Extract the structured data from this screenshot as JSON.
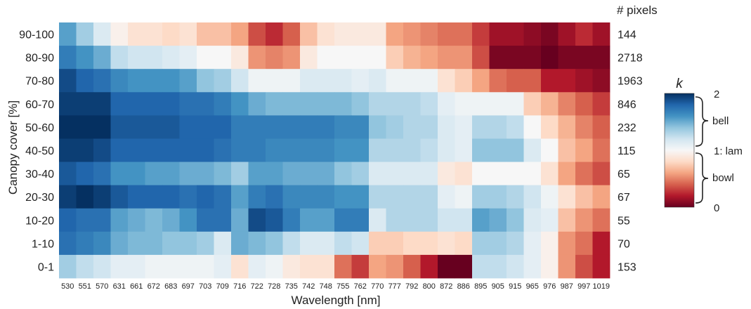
{
  "chart_data": {
    "type": "heatmap",
    "xlabel": "Wavelength [nm]",
    "ylabel": "Canopy cover [%]",
    "pixels_title": "# pixels",
    "x": [
      "530",
      "551",
      "570",
      "631",
      "661",
      "672",
      "683",
      "697",
      "703",
      "709",
      "716",
      "722",
      "728",
      "735",
      "742",
      "748",
      "755",
      "762",
      "770",
      "777",
      "792",
      "800",
      "872",
      "886",
      "895",
      "905",
      "915",
      "965",
      "976",
      "987",
      "997",
      "1019"
    ],
    "y": [
      "90-100",
      "80-90",
      "70-80",
      "60-70",
      "50-60",
      "40-50",
      "30-40",
      "20-30",
      "10-20",
      "1-10",
      "0-1"
    ],
    "pixels": [
      "144",
      "2718",
      "1963",
      "846",
      "232",
      "115",
      "65",
      "67",
      "55",
      "70",
      "153"
    ],
    "z": [
      [
        1.55,
        1.35,
        1.15,
        0.95,
        0.85,
        0.85,
        0.8,
        0.85,
        0.7,
        0.7,
        0.6,
        0.35,
        0.25,
        0.4,
        0.7,
        0.85,
        0.9,
        0.9,
        0.9,
        0.6,
        0.55,
        0.5,
        0.45,
        0.45,
        0.3,
        0.15,
        0.15,
        0.1,
        0.05,
        0.15,
        0.25,
        0.15
      ],
      [
        1.7,
        1.6,
        1.5,
        1.25,
        1.2,
        1.2,
        1.15,
        1.1,
        1.0,
        1.0,
        0.9,
        0.55,
        0.5,
        0.55,
        0.9,
        1.0,
        1.0,
        1.0,
        1.0,
        0.75,
        0.65,
        0.6,
        0.55,
        0.55,
        0.35,
        0.05,
        0.05,
        0.05,
        0.0,
        0.05,
        0.05,
        0.05
      ],
      [
        1.9,
        1.8,
        1.75,
        1.65,
        1.6,
        1.6,
        1.6,
        1.55,
        1.4,
        1.35,
        1.2,
        1.05,
        1.05,
        1.05,
        1.15,
        1.15,
        1.15,
        1.1,
        1.15,
        1.05,
        1.05,
        1.05,
        0.85,
        0.75,
        0.6,
        0.45,
        0.4,
        0.4,
        0.2,
        0.2,
        0.15,
        0.1
      ],
      [
        1.95,
        1.95,
        1.95,
        1.8,
        1.8,
        1.8,
        1.8,
        1.75,
        1.75,
        1.7,
        1.6,
        1.5,
        1.45,
        1.45,
        1.45,
        1.45,
        1.45,
        1.4,
        1.3,
        1.3,
        1.3,
        1.25,
        1.1,
        1.05,
        1.05,
        1.05,
        1.05,
        0.75,
        0.65,
        0.5,
        0.4,
        0.3
      ],
      [
        2.0,
        2.0,
        2.0,
        1.85,
        1.85,
        1.85,
        1.85,
        1.8,
        1.8,
        1.8,
        1.7,
        1.7,
        1.7,
        1.7,
        1.7,
        1.7,
        1.65,
        1.65,
        1.4,
        1.35,
        1.3,
        1.3,
        1.15,
        1.1,
        1.3,
        1.3,
        1.25,
        1.0,
        0.8,
        0.65,
        0.5,
        0.4
      ],
      [
        1.95,
        1.95,
        1.9,
        1.8,
        1.8,
        1.8,
        1.8,
        1.8,
        1.8,
        1.75,
        1.7,
        1.7,
        1.65,
        1.65,
        1.65,
        1.65,
        1.6,
        1.6,
        1.3,
        1.3,
        1.3,
        1.25,
        1.15,
        1.1,
        1.4,
        1.4,
        1.4,
        1.15,
        1.0,
        0.7,
        0.6,
        0.45
      ],
      [
        1.85,
        1.8,
        1.75,
        1.6,
        1.6,
        1.55,
        1.55,
        1.5,
        1.5,
        1.45,
        1.35,
        1.55,
        1.55,
        1.5,
        1.5,
        1.5,
        1.4,
        1.35,
        1.15,
        1.15,
        1.15,
        1.15,
        0.9,
        0.85,
        1.0,
        1.0,
        1.0,
        1.0,
        0.85,
        0.6,
        0.45,
        0.35
      ],
      [
        1.95,
        2.0,
        1.95,
        1.85,
        1.8,
        1.8,
        1.8,
        1.75,
        1.8,
        1.75,
        1.55,
        1.7,
        1.75,
        1.65,
        1.65,
        1.65,
        1.6,
        1.6,
        1.3,
        1.3,
        1.3,
        1.3,
        1.1,
        1.05,
        1.35,
        1.35,
        1.3,
        1.2,
        1.05,
        0.85,
        0.7,
        0.6
      ],
      [
        1.8,
        1.75,
        1.75,
        1.55,
        1.5,
        1.45,
        1.5,
        1.6,
        1.75,
        1.75,
        1.5,
        1.9,
        1.85,
        1.7,
        1.55,
        1.55,
        1.7,
        1.7,
        1.15,
        1.3,
        1.3,
        1.3,
        1.2,
        1.2,
        1.55,
        1.5,
        1.4,
        1.15,
        1.1,
        0.7,
        0.55,
        0.45
      ],
      [
        1.75,
        1.7,
        1.65,
        1.5,
        1.45,
        1.45,
        1.4,
        1.4,
        1.35,
        1.15,
        1.5,
        1.45,
        1.4,
        1.25,
        1.15,
        1.15,
        1.25,
        1.2,
        0.75,
        0.75,
        0.8,
        0.8,
        0.85,
        0.8,
        1.35,
        1.35,
        1.3,
        1.1,
        0.95,
        0.55,
        0.45,
        0.2
      ],
      [
        1.35,
        1.25,
        1.2,
        1.1,
        1.1,
        1.05,
        1.05,
        1.05,
        1.05,
        1.1,
        0.85,
        1.1,
        1.05,
        0.9,
        0.85,
        0.85,
        0.45,
        0.3,
        0.6,
        0.55,
        0.4,
        0.2,
        0.0,
        0.0,
        1.25,
        1.25,
        1.2,
        1.1,
        0.95,
        0.55,
        0.35,
        0.2
      ]
    ],
    "colorbar": {
      "title": "k",
      "min": 0,
      "max": 2,
      "ticks": [
        "2",
        "1: lam",
        "0"
      ],
      "annotations": [
        "bell",
        "bowl"
      ],
      "colors": [
        "#67001f",
        "#b2182b",
        "#d6604d",
        "#f4a582",
        "#fddbc7",
        "#f7f7f7",
        "#d1e5f0",
        "#92c5de",
        "#4393c3",
        "#2166ac",
        "#053061"
      ]
    }
  }
}
